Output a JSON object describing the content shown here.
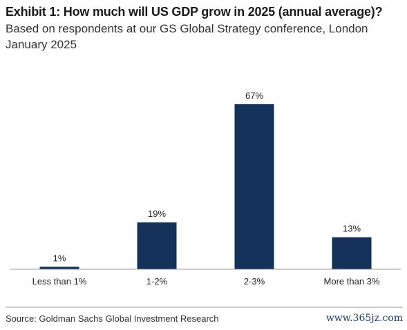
{
  "title": "Exhibit 1: How much will US GDP grow in 2025 (annual average)?",
  "subtitle_lines": [
    "Based on respondents at our GS Global Strategy conference, London",
    "January 2025"
  ],
  "source": "Source: Goldman Sachs Global Investment Research",
  "watermark": "www.365jz.com",
  "chart_data": {
    "type": "bar",
    "title": "Exhibit 1: How much will US GDP grow in 2025 (annual average)?",
    "subtitle": "Based on respondents at our GS Global Strategy conference, London January 2025",
    "categories": [
      "Less than 1%",
      "1-2%",
      "2-3%",
      "More than 3%"
    ],
    "values": [
      1,
      19,
      67,
      13
    ],
    "data_labels": [
      "1%",
      "19%",
      "67%",
      "13%"
    ],
    "unit": "%",
    "ylim": [
      0,
      80
    ],
    "grid": false,
    "y_axis_visible": false,
    "bar_color": "#14315a"
  }
}
